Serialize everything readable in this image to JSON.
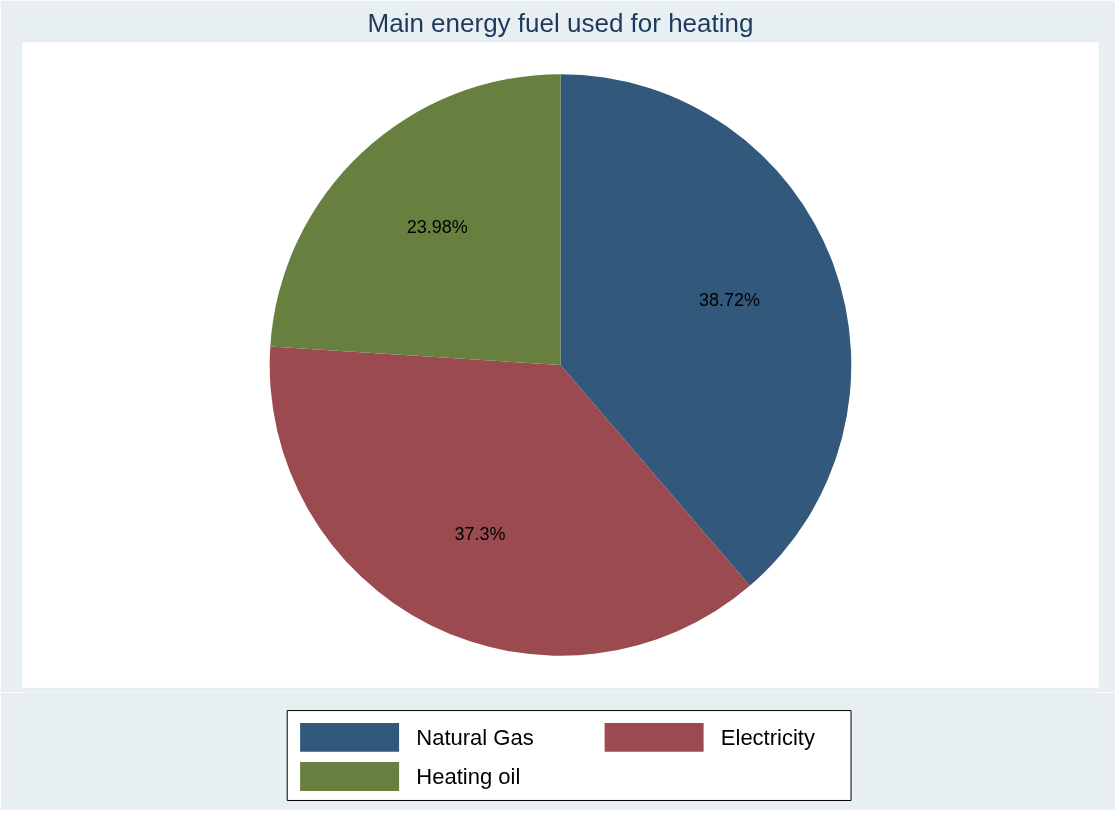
{
  "chart_data": {
    "type": "pie",
    "title": "Main energy fuel used for heating",
    "categories": [
      "Natural Gas",
      "Electricity",
      "Heating oil"
    ],
    "values": [
      38.72,
      37.3,
      23.98
    ],
    "value_labels": [
      "38.72%",
      "37.3%",
      "23.98%"
    ],
    "colors": [
      "#32587b",
      "#9b4a4f",
      "#67803f"
    ],
    "legend": "bottom"
  }
}
